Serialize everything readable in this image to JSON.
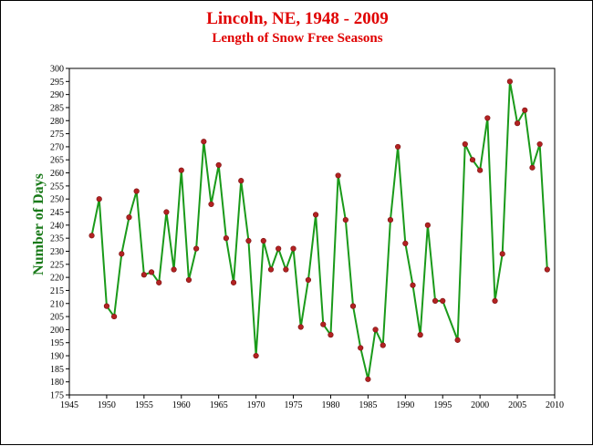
{
  "chart_data": {
    "type": "line",
    "title": "Lincoln, NE, 1948 - 2009",
    "subtitle": "Length of Snow Free Seasons",
    "xlabel": "",
    "ylabel": "Number of Days",
    "xlim": [
      1945,
      2010
    ],
    "ylim": [
      175,
      300
    ],
    "x_ticks": [
      1945,
      1950,
      1955,
      1960,
      1965,
      1970,
      1975,
      1980,
      1985,
      1990,
      1995,
      2000,
      2005,
      2010
    ],
    "y_ticks": [
      175,
      180,
      185,
      190,
      195,
      200,
      205,
      210,
      215,
      220,
      225,
      230,
      235,
      240,
      245,
      250,
      255,
      260,
      265,
      270,
      275,
      280,
      285,
      290,
      295,
      300
    ],
    "grid": false,
    "line_color": "#1a9a1a",
    "marker_color": "#b22222",
    "series": [
      {
        "x": [
          1948,
          1949,
          1950,
          1951,
          1952,
          1953,
          1954,
          1955,
          1956,
          1957,
          1958,
          1959,
          1960,
          1961,
          1962,
          1963,
          1964,
          1965,
          1966,
          1967,
          1968,
          1969,
          1970,
          1971,
          1972,
          1973,
          1974,
          1975,
          1976,
          1977,
          1978,
          1979,
          1980,
          1981,
          1982,
          1983,
          1984,
          1985,
          1986,
          1987,
          1988,
          1989,
          1990,
          1991,
          1992,
          1993,
          1994,
          1995,
          1997,
          1998,
          1999,
          2000,
          2001,
          2002,
          2003,
          2004,
          2005,
          2006,
          2007,
          2008,
          2009
        ],
        "values": [
          236,
          250,
          209,
          205,
          229,
          243,
          253,
          221,
          222,
          218,
          245,
          223,
          261,
          219,
          231,
          272,
          248,
          263,
          235,
          218,
          257,
          234,
          190,
          234,
          223,
          231,
          223,
          231,
          201,
          219,
          244,
          202,
          198,
          259,
          242,
          209,
          193,
          181,
          200,
          194,
          242,
          270,
          233,
          217,
          198,
          240,
          211,
          211,
          196,
          271,
          265,
          261,
          281,
          211,
          229,
          295,
          279,
          284,
          262,
          271,
          223
        ]
      }
    ]
  }
}
